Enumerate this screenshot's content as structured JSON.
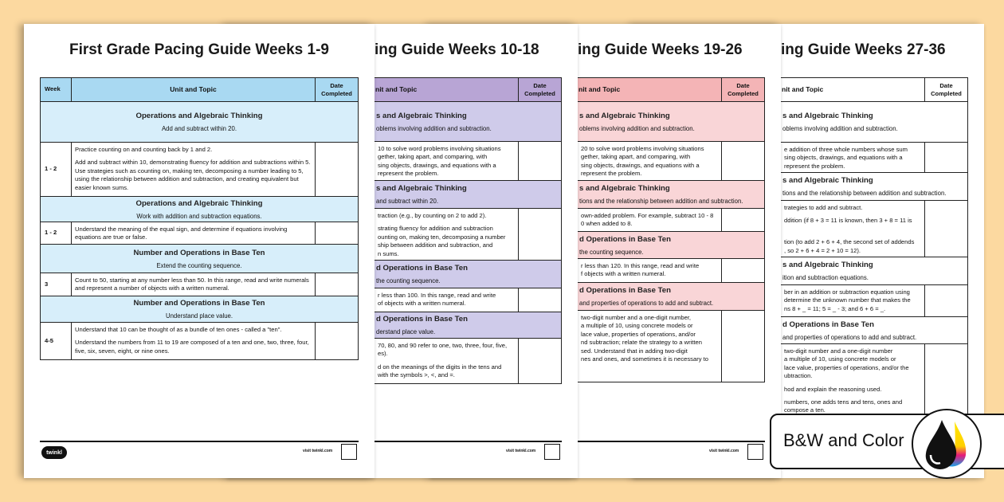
{
  "colors": {
    "background": "#fcd9a0"
  },
  "pages": [
    {
      "title": "First Grade Pacing Guide Weeks 1-9",
      "header_color": "#a9d9f2",
      "section_color": "#d7eefa",
      "header": {
        "week": "Week",
        "topic": "Unit and Topic",
        "date": "Date\nCompleted"
      },
      "rows": [
        {
          "type": "section",
          "heading": "Operations and Algebraic Thinking",
          "sub": "Add and subtract within 20."
        },
        {
          "type": "row",
          "week": "1 - 2",
          "paras": [
            "Practice counting on and counting back by 1 and 2.",
            "Add and subtract within 10, demonstrating fluency for addition and subtractions within 5. Use strategies such as counting on, making ten, decomposing a number leading to 5, using the relationship between addition and subtraction, and creating equivalent but easier known sums."
          ]
        },
        {
          "type": "section",
          "heading": "Operations and Algebraic Thinking",
          "sub": "Work with addition and subtraction equations."
        },
        {
          "type": "row",
          "week": "1 - 2",
          "paras": [
            "Understand the meaning of the equal sign, and determine if equations involving equations are true or false."
          ]
        },
        {
          "type": "section",
          "heading": "Number and Operations in Base Ten",
          "sub": "Extend the counting sequence."
        },
        {
          "type": "row",
          "week": "3",
          "paras": [
            "Count to 50, starting at any number less than 50. In this range, read and write numerals and represent a number of objects with a written numeral."
          ]
        },
        {
          "type": "section",
          "heading": "Number and Operations in Base Ten",
          "sub": "Understand place value."
        },
        {
          "type": "row",
          "week": "4-5",
          "paras": [
            "Understand that 10 can be thought of as a bundle of ten ones - called a \"ten\".",
            "Understand the numbers from 11 to 19 are composed of a ten and one, two, three, four, five, six, seven, eight, or nine ones."
          ]
        }
      ]
    },
    {
      "title": "ing Guide Weeks 10-18",
      "header_color": "#b8a5d5",
      "section_color": "#cfcbea",
      "header": {
        "week": "",
        "topic": "nit and Topic",
        "date": "Date\nCompleted"
      },
      "rows": [
        {
          "type": "section",
          "heading": "s and Algebraic Thinking",
          "sub": "oblems involving addition and subtraction."
        },
        {
          "type": "row",
          "week": "",
          "paras": [
            "10 to solve word problems involving situations\ngether, taking apart, and comparing, with\nsing objects, drawings, and equations with a\nrepresent the problem."
          ]
        },
        {
          "type": "section",
          "heading": "s and Algebraic Thinking",
          "sub": "and subtract within 20."
        },
        {
          "type": "row",
          "week": "",
          "paras": [
            "traction (e.g., by counting on 2 to add 2).",
            "strating fluency for addition and subtraction\nounting on, making ten, decomposing a number\nship between addition and subtraction, and\nn sums."
          ]
        },
        {
          "type": "section",
          "heading": "d Operations in Base Ten",
          "sub": "the counting sequence."
        },
        {
          "type": "row",
          "week": "",
          "paras": [
            "r less than 100. In this range, read and write\nof objects with a written numeral."
          ]
        },
        {
          "type": "section",
          "heading": "d Operations in Base Ten",
          "sub": "derstand place value."
        },
        {
          "type": "row",
          "week": "",
          "paras": [
            "70, 80, and 90 refer to one, two, three, four, five,\nes).",
            "d on the meanings of the digits in the tens and\nwith the symbols >, <, and =."
          ]
        }
      ]
    },
    {
      "title": "ing Guide Weeks 19-26",
      "header_color": "#f4b4b6",
      "section_color": "#f9d5d7",
      "header": {
        "week": "",
        "topic": "nit and Topic",
        "date": "Date\nCompleted"
      },
      "rows": [
        {
          "type": "section",
          "heading": "s and Algebraic Thinking",
          "sub": "oblems involving addition and subtraction."
        },
        {
          "type": "row",
          "week": "",
          "paras": [
            "20 to solve word problems involving situations\ngether, taking apart, and comparing, with\nsing objects, drawings, and equations with a\nrepresent the problem."
          ]
        },
        {
          "type": "section",
          "heading": "s and Algebraic Thinking",
          "sub": "tions and the relationship between addition and subtraction."
        },
        {
          "type": "row",
          "week": "",
          "paras": [
            "own-added problem. For example, subtract 10 - 8\n0 when added to 8."
          ]
        },
        {
          "type": "section",
          "heading": "d Operations in Base Ten",
          "sub": "the counting sequence."
        },
        {
          "type": "row",
          "week": "",
          "paras": [
            "r less than 120. In this range, read and write\nf objects with a written numeral."
          ]
        },
        {
          "type": "section",
          "heading": "d Operations in Base Ten",
          "sub": "and properties of operations to add and subtract."
        },
        {
          "type": "row",
          "week": "",
          "paras": [
            "two-digit number and a one-digit number,\na multiple of 10, using concrete models or\nlace value, properties of operations, and/or\nnd subtraction; relate the strategy to a written\nsed. Understand that in adding two-digit\nnes and ones, and sometimes it is necessary to"
          ]
        }
      ]
    },
    {
      "title": "ing Guide Weeks 27-36",
      "header_color": "#ffffff",
      "section_color": "#ffffff",
      "header": {
        "week": "",
        "topic": "nit and Topic",
        "date": "Date\nCompleted"
      },
      "rows": [
        {
          "type": "section",
          "heading": "s and Algebraic Thinking",
          "sub": "oblems involving addition and subtraction."
        },
        {
          "type": "row",
          "week": "",
          "paras": [
            "e addition of three whole numbers whose sum\nsing objects, drawings, and equations with a\nrepresent the problem."
          ]
        },
        {
          "type": "section",
          "heading": "s and Algebraic Thinking",
          "sub": "tions and the relationship between addition and subtraction."
        },
        {
          "type": "row",
          "week": "",
          "paras": [
            "trategies to add and subtract.",
            "ddition (if 8 + 3 = 11 is known, then 3 + 8 = 11 is",
            "\ntion (to add 2 + 6 + 4, the second set of addends\n, so 2 + 6 + 4 = 2 + 10 = 12)."
          ]
        },
        {
          "type": "section",
          "heading": "s and Algebraic Thinking",
          "sub": "ition and subtraction equations."
        },
        {
          "type": "row",
          "week": "",
          "paras": [
            "ber in an addition or subtraction equation using\ndetermine the unknown number that makes the\nns 8 + _ = 11; 5 = _ - 3; and 6 + 6 = _."
          ]
        },
        {
          "type": "section",
          "heading": "d Operations in Base Ten",
          "sub": "and properties of operations to add and subtract."
        },
        {
          "type": "row",
          "week": "",
          "paras": [
            "two-digit number and a one-digit number\na multiple of 10, using concrete models or\nlace value, properties of operations, and/or the\nubtraction.",
            "hod and explain the reasoning used.",
            "numbers, one adds tens and tens, ones and\ncompose a ten."
          ]
        }
      ]
    }
  ],
  "footer": {
    "logo": "twinkl",
    "visit": "visit twinkl.com"
  },
  "badge": {
    "label": "B&W and Color",
    "icon": "ink-drops-icon"
  }
}
